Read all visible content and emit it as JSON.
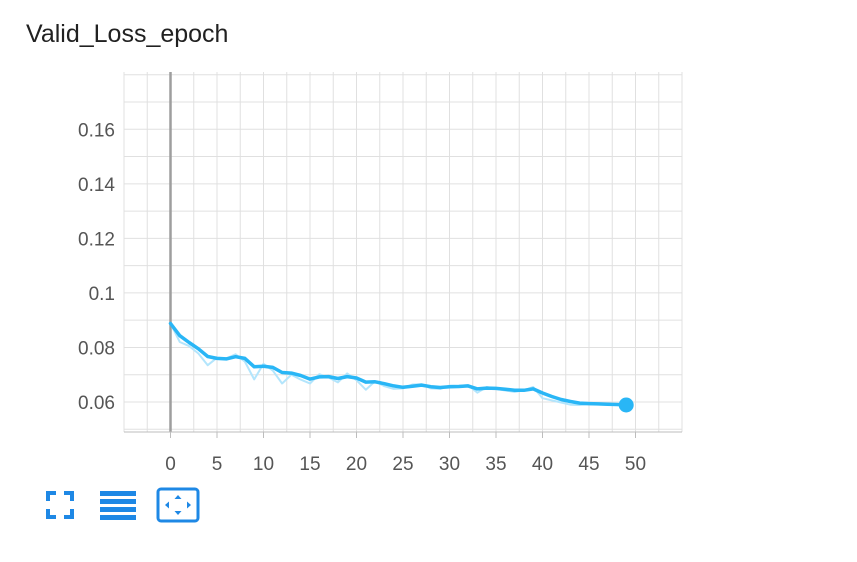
{
  "title": "Valid_Loss_epoch",
  "chart_data": {
    "type": "line",
    "title": "Valid_Loss_epoch",
    "xlabel": "",
    "ylabel": "",
    "xlim": [
      -5,
      55
    ],
    "ylim": [
      0.049,
      0.181
    ],
    "x_ticks": [
      0,
      5,
      10,
      15,
      20,
      25,
      30,
      35,
      40,
      45,
      50
    ],
    "y_ticks": [
      0.06,
      0.08,
      0.1,
      0.12,
      0.14,
      0.16
    ],
    "y_tick_labels": [
      "0.06",
      "0.08",
      "0.1",
      "0.12",
      "0.14",
      "0.16"
    ],
    "grid": true,
    "color": "#29b6f6",
    "raw_color": "#b3e5fc",
    "series": [
      {
        "x": [
          0,
          1,
          2,
          3,
          4,
          5,
          6,
          7,
          8,
          9,
          10,
          11,
          12,
          13,
          14,
          15,
          16,
          17,
          18,
          19,
          20,
          21,
          22,
          23,
          24,
          25,
          26,
          27,
          28,
          29,
          30,
          31,
          32,
          33,
          34,
          35,
          36,
          37,
          38,
          39,
          40,
          41,
          42,
          43,
          44,
          45,
          46,
          47,
          48,
          49
        ],
        "smoothed": [
          0.0888,
          0.0843,
          0.0818,
          0.0795,
          0.0767,
          0.076,
          0.0758,
          0.0766,
          0.076,
          0.0729,
          0.0731,
          0.0727,
          0.0708,
          0.0706,
          0.0697,
          0.0684,
          0.0692,
          0.0693,
          0.0686,
          0.0693,
          0.0688,
          0.0673,
          0.0674,
          0.0667,
          0.0659,
          0.0654,
          0.0658,
          0.0662,
          0.0656,
          0.0653,
          0.0656,
          0.0657,
          0.0659,
          0.0648,
          0.0651,
          0.065,
          0.0647,
          0.0643,
          0.0643,
          0.0648,
          0.0633,
          0.062,
          0.0609,
          0.0602,
          0.0596,
          0.0594,
          0.0593,
          0.0592,
          0.0591,
          0.0589
        ],
        "raw": [
          0.0888,
          0.082,
          0.0805,
          0.0778,
          0.0735,
          0.0762,
          0.076,
          0.0775,
          0.0748,
          0.0683,
          0.074,
          0.0715,
          0.0668,
          0.07,
          0.0682,
          0.0668,
          0.0702,
          0.069,
          0.0672,
          0.0705,
          0.068,
          0.0645,
          0.0676,
          0.0658,
          0.0648,
          0.065,
          0.0664,
          0.0665,
          0.065,
          0.0648,
          0.066,
          0.0659,
          0.0662,
          0.0634,
          0.0655,
          0.0648,
          0.0642,
          0.0637,
          0.0643,
          0.0655,
          0.0614,
          0.0606,
          0.0598,
          0.059,
          0.0589,
          0.0592,
          0.0591,
          0.059,
          0.0589,
          0.0588
        ]
      }
    ]
  },
  "toolbar": {
    "fullscreen_icon": "fullscreen-icon",
    "data_table_icon": "data-table-icon",
    "fit_domain_icon": "fit-domain-icon"
  }
}
